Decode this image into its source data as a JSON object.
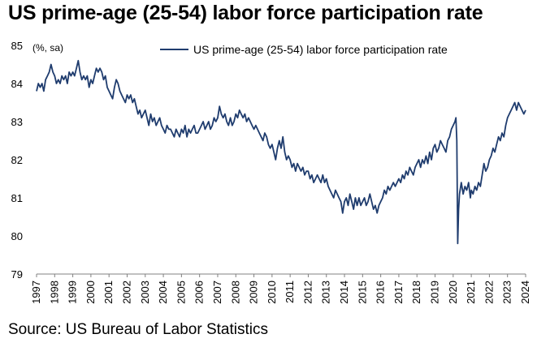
{
  "chart_data": {
    "type": "line",
    "title": "US prime-age (25-54) labor force participation rate",
    "unit_label": "(%, sa)",
    "source": "Source: US Bureau of Labor Statistics",
    "ylim": [
      79,
      85
    ],
    "yticks": [
      79,
      80,
      81,
      82,
      83,
      84,
      85
    ],
    "xlim": [
      1997,
      2024
    ],
    "xticks": [
      "1997",
      "1998",
      "1999",
      "2000",
      "2001",
      "2002",
      "2003",
      "2004",
      "2005",
      "2006",
      "2007",
      "2008",
      "2009",
      "2010",
      "2011",
      "2012",
      "2013",
      "2014",
      "2015",
      "2016",
      "2017",
      "2018",
      "2019",
      "2020",
      "2021",
      "2022",
      "2023",
      "2024"
    ],
    "grid": false,
    "legend_position": "top-right",
    "series": [
      {
        "name": "US prime-age (25-54) labor force participation rate",
        "color": "#1f3c6e",
        "points": [
          [
            1997.0,
            83.8
          ],
          [
            1997.1,
            84.0
          ],
          [
            1997.2,
            83.9
          ],
          [
            1997.3,
            84.0
          ],
          [
            1997.4,
            83.8
          ],
          [
            1997.5,
            84.1
          ],
          [
            1997.6,
            84.2
          ],
          [
            1997.7,
            84.3
          ],
          [
            1997.8,
            84.5
          ],
          [
            1997.9,
            84.3
          ],
          [
            1998.0,
            84.2
          ],
          [
            1998.1,
            84.0
          ],
          [
            1998.2,
            84.1
          ],
          [
            1998.3,
            84.0
          ],
          [
            1998.4,
            84.2
          ],
          [
            1998.5,
            84.1
          ],
          [
            1998.6,
            84.2
          ],
          [
            1998.7,
            84.0
          ],
          [
            1998.8,
            84.3
          ],
          [
            1998.9,
            84.2
          ],
          [
            1999.0,
            84.3
          ],
          [
            1999.1,
            84.2
          ],
          [
            1999.2,
            84.4
          ],
          [
            1999.3,
            84.6
          ],
          [
            1999.4,
            84.3
          ],
          [
            1999.5,
            84.1
          ],
          [
            1999.6,
            84.2
          ],
          [
            1999.7,
            84.1
          ],
          [
            1999.8,
            84.2
          ],
          [
            1999.9,
            83.9
          ],
          [
            2000.0,
            84.1
          ],
          [
            2000.1,
            84.0
          ],
          [
            2000.2,
            84.2
          ],
          [
            2000.3,
            84.4
          ],
          [
            2000.4,
            84.3
          ],
          [
            2000.5,
            84.4
          ],
          [
            2000.6,
            84.3
          ],
          [
            2000.7,
            84.1
          ],
          [
            2000.8,
            84.2
          ],
          [
            2000.9,
            83.9
          ],
          [
            2001.0,
            83.8
          ],
          [
            2001.1,
            83.7
          ],
          [
            2001.2,
            83.6
          ],
          [
            2001.3,
            83.9
          ],
          [
            2001.4,
            84.1
          ],
          [
            2001.5,
            84.0
          ],
          [
            2001.6,
            83.8
          ],
          [
            2001.7,
            83.7
          ],
          [
            2001.8,
            83.6
          ],
          [
            2001.9,
            83.5
          ],
          [
            2002.0,
            83.7
          ],
          [
            2002.1,
            83.6
          ],
          [
            2002.2,
            83.7
          ],
          [
            2002.3,
            83.5
          ],
          [
            2002.4,
            83.6
          ],
          [
            2002.5,
            83.4
          ],
          [
            2002.6,
            83.2
          ],
          [
            2002.7,
            83.3
          ],
          [
            2002.8,
            83.1
          ],
          [
            2002.9,
            83.2
          ],
          [
            2003.0,
            83.3
          ],
          [
            2003.1,
            83.1
          ],
          [
            2003.2,
            82.9
          ],
          [
            2003.3,
            83.2
          ],
          [
            2003.4,
            83.0
          ],
          [
            2003.5,
            83.1
          ],
          [
            2003.6,
            82.9
          ],
          [
            2003.7,
            83.0
          ],
          [
            2003.8,
            83.1
          ],
          [
            2003.9,
            82.9
          ],
          [
            2004.0,
            82.8
          ],
          [
            2004.1,
            82.7
          ],
          [
            2004.2,
            82.9
          ],
          [
            2004.3,
            82.8
          ],
          [
            2004.4,
            82.8
          ],
          [
            2004.5,
            82.7
          ],
          [
            2004.6,
            82.6
          ],
          [
            2004.7,
            82.8
          ],
          [
            2004.8,
            82.7
          ],
          [
            2004.9,
            82.6
          ],
          [
            2005.0,
            82.8
          ],
          [
            2005.1,
            82.7
          ],
          [
            2005.2,
            82.9
          ],
          [
            2005.3,
            82.6
          ],
          [
            2005.4,
            82.8
          ],
          [
            2005.5,
            82.7
          ],
          [
            2005.6,
            82.8
          ],
          [
            2005.7,
            82.9
          ],
          [
            2005.8,
            82.7
          ],
          [
            2005.9,
            82.7
          ],
          [
            2006.0,
            82.8
          ],
          [
            2006.1,
            82.9
          ],
          [
            2006.2,
            83.0
          ],
          [
            2006.3,
            82.8
          ],
          [
            2006.4,
            82.9
          ],
          [
            2006.5,
            83.0
          ],
          [
            2006.6,
            82.8
          ],
          [
            2006.7,
            82.9
          ],
          [
            2006.8,
            83.1
          ],
          [
            2006.9,
            83.0
          ],
          [
            2007.0,
            83.1
          ],
          [
            2007.1,
            83.4
          ],
          [
            2007.2,
            83.2
          ],
          [
            2007.3,
            83.1
          ],
          [
            2007.4,
            83.2
          ],
          [
            2007.5,
            83.0
          ],
          [
            2007.6,
            82.9
          ],
          [
            2007.7,
            83.1
          ],
          [
            2007.8,
            82.9
          ],
          [
            2007.9,
            83.0
          ],
          [
            2008.0,
            83.2
          ],
          [
            2008.1,
            83.1
          ],
          [
            2008.2,
            83.3
          ],
          [
            2008.3,
            83.2
          ],
          [
            2008.4,
            83.1
          ],
          [
            2008.5,
            83.2
          ],
          [
            2008.6,
            83.0
          ],
          [
            2008.7,
            83.1
          ],
          [
            2008.8,
            83.0
          ],
          [
            2008.9,
            82.9
          ],
          [
            2009.0,
            82.8
          ],
          [
            2009.1,
            82.9
          ],
          [
            2009.2,
            82.8
          ],
          [
            2009.3,
            82.7
          ],
          [
            2009.4,
            82.6
          ],
          [
            2009.5,
            82.5
          ],
          [
            2009.6,
            82.7
          ],
          [
            2009.7,
            82.6
          ],
          [
            2009.8,
            82.4
          ],
          [
            2009.9,
            82.3
          ],
          [
            2010.0,
            82.4
          ],
          [
            2010.1,
            82.2
          ],
          [
            2010.2,
            82.0
          ],
          [
            2010.3,
            82.3
          ],
          [
            2010.4,
            82.5
          ],
          [
            2010.5,
            82.3
          ],
          [
            2010.6,
            82.6
          ],
          [
            2010.7,
            82.2
          ],
          [
            2010.8,
            82.0
          ],
          [
            2010.9,
            82.1
          ],
          [
            2011.0,
            82.0
          ],
          [
            2011.1,
            81.8
          ],
          [
            2011.2,
            81.9
          ],
          [
            2011.3,
            81.7
          ],
          [
            2011.4,
            81.9
          ],
          [
            2011.5,
            81.8
          ],
          [
            2011.6,
            81.7
          ],
          [
            2011.7,
            81.8
          ],
          [
            2011.8,
            81.6
          ],
          [
            2011.9,
            81.7
          ],
          [
            2012.0,
            81.7
          ],
          [
            2012.1,
            81.5
          ],
          [
            2012.2,
            81.6
          ],
          [
            2012.3,
            81.4
          ],
          [
            2012.4,
            81.5
          ],
          [
            2012.5,
            81.6
          ],
          [
            2012.6,
            81.5
          ],
          [
            2012.7,
            81.4
          ],
          [
            2012.8,
            81.6
          ],
          [
            2012.9,
            81.4
          ],
          [
            2013.0,
            81.5
          ],
          [
            2013.1,
            81.3
          ],
          [
            2013.2,
            81.2
          ],
          [
            2013.3,
            81.1
          ],
          [
            2013.4,
            81.0
          ],
          [
            2013.5,
            81.2
          ],
          [
            2013.6,
            81.1
          ],
          [
            2013.7,
            81.0
          ],
          [
            2013.8,
            80.9
          ],
          [
            2013.9,
            80.6
          ],
          [
            2014.0,
            80.9
          ],
          [
            2014.1,
            81.0
          ],
          [
            2014.2,
            80.8
          ],
          [
            2014.3,
            81.1
          ],
          [
            2014.4,
            80.9
          ],
          [
            2014.5,
            80.7
          ],
          [
            2014.6,
            81.0
          ],
          [
            2014.7,
            80.8
          ],
          [
            2014.8,
            81.0
          ],
          [
            2014.9,
            80.8
          ],
          [
            2015.0,
            80.9
          ],
          [
            2015.1,
            81.0
          ],
          [
            2015.2,
            80.8
          ],
          [
            2015.3,
            80.9
          ],
          [
            2015.4,
            81.1
          ],
          [
            2015.5,
            80.9
          ],
          [
            2015.6,
            80.7
          ],
          [
            2015.7,
            80.8
          ],
          [
            2015.8,
            80.6
          ],
          [
            2015.9,
            80.8
          ],
          [
            2016.0,
            80.9
          ],
          [
            2016.1,
            81.0
          ],
          [
            2016.2,
            81.2
          ],
          [
            2016.3,
            81.1
          ],
          [
            2016.4,
            81.3
          ],
          [
            2016.5,
            81.2
          ],
          [
            2016.6,
            81.3
          ],
          [
            2016.7,
            81.4
          ],
          [
            2016.8,
            81.3
          ],
          [
            2016.9,
            81.4
          ],
          [
            2017.0,
            81.5
          ],
          [
            2017.1,
            81.4
          ],
          [
            2017.2,
            81.6
          ],
          [
            2017.3,
            81.5
          ],
          [
            2017.4,
            81.7
          ],
          [
            2017.5,
            81.6
          ],
          [
            2017.6,
            81.8
          ],
          [
            2017.7,
            81.7
          ],
          [
            2017.8,
            81.6
          ],
          [
            2017.9,
            81.8
          ],
          [
            2018.0,
            81.9
          ],
          [
            2018.1,
            82.0
          ],
          [
            2018.2,
            81.8
          ],
          [
            2018.3,
            82.0
          ],
          [
            2018.4,
            81.9
          ],
          [
            2018.5,
            82.1
          ],
          [
            2018.6,
            81.9
          ],
          [
            2018.7,
            82.2
          ],
          [
            2018.8,
            82.0
          ],
          [
            2018.9,
            82.3
          ],
          [
            2019.0,
            82.4
          ],
          [
            2019.1,
            82.2
          ],
          [
            2019.2,
            82.3
          ],
          [
            2019.3,
            82.5
          ],
          [
            2019.4,
            82.4
          ],
          [
            2019.5,
            82.3
          ],
          [
            2019.6,
            82.2
          ],
          [
            2019.7,
            82.5
          ],
          [
            2019.8,
            82.6
          ],
          [
            2019.9,
            82.8
          ],
          [
            2020.0,
            82.9
          ],
          [
            2020.1,
            83.0
          ],
          [
            2020.15,
            83.1
          ],
          [
            2020.2,
            82.5
          ],
          [
            2020.25,
            79.8
          ],
          [
            2020.3,
            80.7
          ],
          [
            2020.35,
            81.1
          ],
          [
            2020.45,
            81.4
          ],
          [
            2020.55,
            81.1
          ],
          [
            2020.65,
            81.3
          ],
          [
            2020.75,
            81.2
          ],
          [
            2020.85,
            81.4
          ],
          [
            2020.95,
            81.0
          ],
          [
            2021.0,
            81.2
          ],
          [
            2021.1,
            81.1
          ],
          [
            2021.2,
            81.3
          ],
          [
            2021.3,
            81.2
          ],
          [
            2021.4,
            81.4
          ],
          [
            2021.5,
            81.3
          ],
          [
            2021.6,
            81.6
          ],
          [
            2021.7,
            81.9
          ],
          [
            2021.8,
            81.7
          ],
          [
            2021.9,
            81.8
          ],
          [
            2022.0,
            82.0
          ],
          [
            2022.1,
            82.1
          ],
          [
            2022.2,
            82.3
          ],
          [
            2022.3,
            82.2
          ],
          [
            2022.4,
            82.4
          ],
          [
            2022.5,
            82.6
          ],
          [
            2022.6,
            82.5
          ],
          [
            2022.7,
            82.7
          ],
          [
            2022.8,
            82.6
          ],
          [
            2022.9,
            82.9
          ],
          [
            2023.0,
            83.1
          ],
          [
            2023.1,
            83.2
          ],
          [
            2023.2,
            83.3
          ],
          [
            2023.3,
            83.4
          ],
          [
            2023.4,
            83.5
          ],
          [
            2023.5,
            83.3
          ],
          [
            2023.6,
            83.5
          ],
          [
            2023.7,
            83.4
          ],
          [
            2023.8,
            83.3
          ],
          [
            2023.9,
            83.2
          ],
          [
            2024.0,
            83.3
          ]
        ]
      }
    ]
  }
}
